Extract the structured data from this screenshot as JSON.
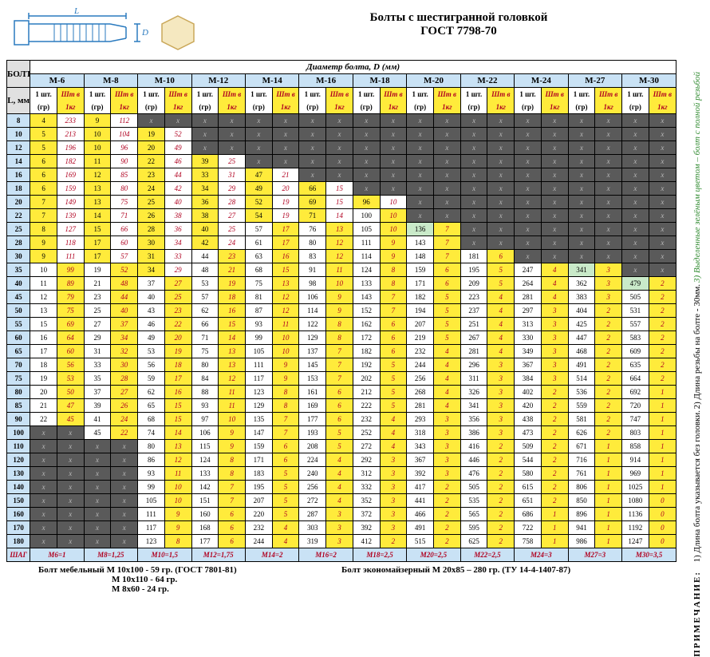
{
  "title1": "Болты с шестигранной головкой",
  "title2": "ГОСТ 7798-70",
  "header_bolt": "БОЛТ",
  "header_diam": "Диаметр болта, D (мм)",
  "header_L": "L, мм",
  "header_g": "1 шт. (гр)",
  "header_k": "Шт в 1кг",
  "diameters": [
    "M-6",
    "M-8",
    "M-10",
    "M-12",
    "M-14",
    "M-16",
    "M-18",
    "M-20",
    "M-22",
    "M-24",
    "M-27",
    "M-30"
  ],
  "lengths": [
    8,
    10,
    12,
    14,
    16,
    18,
    20,
    22,
    25,
    28,
    30,
    35,
    40,
    45,
    50,
    55,
    60,
    65,
    70,
    75,
    80,
    85,
    90,
    100,
    110,
    120,
    130,
    140,
    150,
    160,
    170,
    180
  ],
  "thread_label": "ШАГ",
  "thread": [
    "M6=1",
    "M8=1,25",
    "M10=1,5",
    "M12=1,75",
    "M14=2",
    "M16=2",
    "M18=2,5",
    "M20=2,5",
    "M22=2,5",
    "M24=3",
    "M27=3",
    "M30=3,5"
  ],
  "yellow_stop_g": [
    11,
    11,
    12,
    10,
    8,
    8,
    7,
    5,
    3,
    3,
    1,
    1
  ],
  "green_ranges": [
    [],
    [],
    [],
    [],
    [],
    [
      8,
      8
    ],
    [
      7,
      8
    ],
    [
      8,
      8
    ],
    [
      8,
      9
    ],
    [
      9,
      10
    ],
    [
      10,
      11
    ],
    [
      11,
      11
    ],
    [
      12,
      13
    ],
    [
      13,
      14
    ],
    [
      14,
      15
    ],
    [
      15,
      16
    ],
    [
      16,
      17
    ],
    [
      17,
      18
    ],
    [
      18,
      19
    ],
    [
      19,
      20
    ],
    [
      20,
      21
    ],
    [
      21,
      22
    ],
    [
      22,
      23
    ],
    [
      23,
      23
    ],
    [],
    [],
    [],
    [],
    [],
    [],
    [],
    []
  ],
  "side_caption": "ПРИМЕЧАНИЕ:",
  "side_notes": [
    "1) Длина болта указывается без головки.",
    "2) Длина резьбы на болте - 30мм.",
    "3) Выделенные зелёным цветом – болт с полной резьбой"
  ],
  "footer_left": [
    "Болт мебельный M 10x100 - 59 гр. (ГОСТ 7801-81)",
    "M 10x110 - 64 гр.",
    "M  8x60 - 24 гр."
  ],
  "footer_right": "Болт экономайзерный M 20x85 – 280 гр. (ТУ 14-4-1407-87)",
  "data": [
    [
      [
        4,
        233
      ],
      [
        9,
        112
      ],
      null,
      null,
      null,
      null,
      null,
      null,
      null,
      null,
      null,
      null
    ],
    [
      [
        5,
        213
      ],
      [
        10,
        104
      ],
      [
        19,
        52
      ],
      null,
      null,
      null,
      null,
      null,
      null,
      null,
      null,
      null
    ],
    [
      [
        5,
        196
      ],
      [
        10,
        96
      ],
      [
        20,
        49
      ],
      null,
      null,
      null,
      null,
      null,
      null,
      null,
      null,
      null
    ],
    [
      [
        6,
        182
      ],
      [
        11,
        90
      ],
      [
        22,
        46
      ],
      [
        39,
        25
      ],
      null,
      null,
      null,
      null,
      null,
      null,
      null,
      null
    ],
    [
      [
        6,
        169
      ],
      [
        12,
        85
      ],
      [
        23,
        44
      ],
      [
        33,
        31
      ],
      [
        47,
        21
      ],
      null,
      null,
      null,
      null,
      null,
      null,
      null
    ],
    [
      [
        6,
        159
      ],
      [
        13,
        80
      ],
      [
        24,
        42
      ],
      [
        34,
        29
      ],
      [
        49,
        20
      ],
      [
        66,
        15
      ],
      null,
      null,
      null,
      null,
      null,
      null
    ],
    [
      [
        7,
        149
      ],
      [
        13,
        75
      ],
      [
        25,
        40
      ],
      [
        36,
        28
      ],
      [
        52,
        19
      ],
      [
        69,
        15
      ],
      [
        96,
        10
      ],
      null,
      null,
      null,
      null,
      null
    ],
    [
      [
        7,
        139
      ],
      [
        14,
        71
      ],
      [
        26,
        38
      ],
      [
        38,
        27
      ],
      [
        54,
        19
      ],
      [
        71,
        14
      ],
      [
        100,
        10
      ],
      null,
      null,
      null,
      null,
      null
    ],
    [
      [
        8,
        127
      ],
      [
        15,
        66
      ],
      [
        28,
        36
      ],
      [
        40,
        25
      ],
      [
        57,
        17
      ],
      [
        76,
        13
      ],
      [
        105,
        10
      ],
      [
        136,
        7
      ],
      null,
      null,
      null,
      null
    ],
    [
      [
        9,
        118
      ],
      [
        17,
        60
      ],
      [
        30,
        34
      ],
      [
        42,
        24
      ],
      [
        61,
        17
      ],
      [
        80,
        12
      ],
      [
        111,
        9
      ],
      [
        143,
        7
      ],
      null,
      null,
      null,
      null
    ],
    [
      [
        9,
        111
      ],
      [
        17,
        57
      ],
      [
        31,
        33
      ],
      [
        44,
        23
      ],
      [
        63,
        16
      ],
      [
        83,
        12
      ],
      [
        114,
        9
      ],
      [
        148,
        7
      ],
      [
        181,
        6
      ],
      null,
      null,
      null
    ],
    [
      [
        10,
        99
      ],
      [
        19,
        52
      ],
      [
        34,
        29
      ],
      [
        48,
        21
      ],
      [
        68,
        15
      ],
      [
        91,
        11
      ],
      [
        124,
        8
      ],
      [
        159,
        6
      ],
      [
        195,
        5
      ],
      [
        247,
        4
      ],
      [
        341,
        3
      ],
      null
    ],
    [
      [
        11,
        89
      ],
      [
        21,
        48
      ],
      [
        37,
        27
      ],
      [
        53,
        19
      ],
      [
        75,
        13
      ],
      [
        98,
        10
      ],
      [
        133,
        8
      ],
      [
        171,
        6
      ],
      [
        209,
        5
      ],
      [
        264,
        4
      ],
      [
        362,
        3
      ],
      [
        479,
        2
      ]
    ],
    [
      [
        12,
        79
      ],
      [
        23,
        44
      ],
      [
        40,
        25
      ],
      [
        57,
        18
      ],
      [
        81,
        12
      ],
      [
        106,
        9
      ],
      [
        143,
        7
      ],
      [
        182,
        5
      ],
      [
        223,
        4
      ],
      [
        281,
        4
      ],
      [
        383,
        3
      ],
      [
        505,
        2
      ]
    ],
    [
      [
        13,
        75
      ],
      [
        25,
        40
      ],
      [
        43,
        23
      ],
      [
        62,
        16
      ],
      [
        87,
        12
      ],
      [
        114,
        9
      ],
      [
        152,
        7
      ],
      [
        194,
        5
      ],
      [
        237,
        4
      ],
      [
        297,
        3
      ],
      [
        404,
        2
      ],
      [
        531,
        2
      ]
    ],
    [
      [
        15,
        69
      ],
      [
        27,
        37
      ],
      [
        46,
        22
      ],
      [
        66,
        15
      ],
      [
        93,
        11
      ],
      [
        122,
        8
      ],
      [
        162,
        6
      ],
      [
        207,
        5
      ],
      [
        251,
        4
      ],
      [
        313,
        3
      ],
      [
        425,
        2
      ],
      [
        557,
        2
      ]
    ],
    [
      [
        16,
        64
      ],
      [
        29,
        34
      ],
      [
        49,
        20
      ],
      [
        71,
        14
      ],
      [
        99,
        10
      ],
      [
        129,
        8
      ],
      [
        172,
        6
      ],
      [
        219,
        5
      ],
      [
        267,
        4
      ],
      [
        330,
        3
      ],
      [
        447,
        2
      ],
      [
        583,
        2
      ]
    ],
    [
      [
        17,
        60
      ],
      [
        31,
        32
      ],
      [
        53,
        19
      ],
      [
        75,
        13
      ],
      [
        105,
        10
      ],
      [
        137,
        7
      ],
      [
        182,
        6
      ],
      [
        232,
        4
      ],
      [
        281,
        4
      ],
      [
        349,
        3
      ],
      [
        468,
        2
      ],
      [
        609,
        2
      ]
    ],
    [
      [
        18,
        56
      ],
      [
        33,
        30
      ],
      [
        56,
        18
      ],
      [
        80,
        13
      ],
      [
        111,
        9
      ],
      [
        145,
        7
      ],
      [
        192,
        5
      ],
      [
        244,
        4
      ],
      [
        296,
        3
      ],
      [
        367,
        3
      ],
      [
        491,
        2
      ],
      [
        635,
        2
      ]
    ],
    [
      [
        19,
        53
      ],
      [
        35,
        28
      ],
      [
        59,
        17
      ],
      [
        84,
        12
      ],
      [
        117,
        9
      ],
      [
        153,
        7
      ],
      [
        202,
        5
      ],
      [
        256,
        4
      ],
      [
        311,
        3
      ],
      [
        384,
        3
      ],
      [
        514,
        2
      ],
      [
        664,
        2
      ]
    ],
    [
      [
        20,
        50
      ],
      [
        37,
        27
      ],
      [
        62,
        16
      ],
      [
        88,
        11
      ],
      [
        123,
        8
      ],
      [
        161,
        6
      ],
      [
        212,
        5
      ],
      [
        268,
        4
      ],
      [
        326,
        3
      ],
      [
        402,
        2
      ],
      [
        536,
        2
      ],
      [
        692,
        1
      ]
    ],
    [
      [
        21,
        47
      ],
      [
        39,
        26
      ],
      [
        65,
        15
      ],
      [
        93,
        11
      ],
      [
        129,
        8
      ],
      [
        169,
        6
      ],
      [
        222,
        5
      ],
      [
        281,
        4
      ],
      [
        341,
        3
      ],
      [
        420,
        2
      ],
      [
        559,
        2
      ],
      [
        720,
        1
      ]
    ],
    [
      [
        22,
        45
      ],
      [
        41,
        24
      ],
      [
        68,
        15
      ],
      [
        97,
        10
      ],
      [
        135,
        7
      ],
      [
        177,
        6
      ],
      [
        232,
        4
      ],
      [
        293,
        3
      ],
      [
        356,
        3
      ],
      [
        438,
        2
      ],
      [
        581,
        2
      ],
      [
        747,
        1
      ]
    ],
    [
      null,
      [
        45,
        22
      ],
      [
        74,
        14
      ],
      [
        106,
        9
      ],
      [
        147,
        7
      ],
      [
        193,
        5
      ],
      [
        252,
        4
      ],
      [
        318,
        3
      ],
      [
        386,
        3
      ],
      [
        473,
        2
      ],
      [
        626,
        2
      ],
      [
        803,
        1
      ]
    ],
    [
      null,
      null,
      [
        80,
        13
      ],
      [
        115,
        9
      ],
      [
        159,
        6
      ],
      [
        208,
        5
      ],
      [
        272,
        4
      ],
      [
        343,
        3
      ],
      [
        416,
        2
      ],
      [
        509,
        2
      ],
      [
        671,
        1
      ],
      [
        858,
        1
      ]
    ],
    [
      null,
      null,
      [
        86,
        12
      ],
      [
        124,
        8
      ],
      [
        171,
        6
      ],
      [
        224,
        4
      ],
      [
        292,
        3
      ],
      [
        367,
        3
      ],
      [
        446,
        2
      ],
      [
        544,
        2
      ],
      [
        716,
        1
      ],
      [
        914,
        1
      ]
    ],
    [
      null,
      null,
      [
        93,
        11
      ],
      [
        133,
        8
      ],
      [
        183,
        5
      ],
      [
        240,
        4
      ],
      [
        312,
        3
      ],
      [
        392,
        3
      ],
      [
        476,
        2
      ],
      [
        580,
        2
      ],
      [
        761,
        1
      ],
      [
        969,
        1
      ]
    ],
    [
      null,
      null,
      [
        99,
        10
      ],
      [
        142,
        7
      ],
      [
        195,
        5
      ],
      [
        256,
        4
      ],
      [
        332,
        3
      ],
      [
        417,
        2
      ],
      [
        505,
        2
      ],
      [
        615,
        2
      ],
      [
        806,
        1
      ],
      [
        1025,
        1
      ]
    ],
    [
      null,
      null,
      [
        105,
        10
      ],
      [
        151,
        7
      ],
      [
        207,
        5
      ],
      [
        272,
        4
      ],
      [
        352,
        3
      ],
      [
        441,
        2
      ],
      [
        535,
        2
      ],
      [
        651,
        2
      ],
      [
        850,
        1
      ],
      [
        1080,
        0
      ]
    ],
    [
      null,
      null,
      [
        111,
        9
      ],
      [
        160,
        6
      ],
      [
        220,
        5
      ],
      [
        287,
        3
      ],
      [
        372,
        3
      ],
      [
        466,
        2
      ],
      [
        565,
        2
      ],
      [
        686,
        1
      ],
      [
        896,
        1
      ],
      [
        1136,
        0
      ]
    ],
    [
      null,
      null,
      [
        117,
        9
      ],
      [
        168,
        6
      ],
      [
        232,
        4
      ],
      [
        303,
        3
      ],
      [
        392,
        3
      ],
      [
        491,
        2
      ],
      [
        595,
        2
      ],
      [
        722,
        1
      ],
      [
        941,
        1
      ],
      [
        1192,
        0
      ]
    ],
    [
      null,
      null,
      [
        123,
        8
      ],
      [
        177,
        6
      ],
      [
        244,
        4
      ],
      [
        319,
        3
      ],
      [
        412,
        2
      ],
      [
        515,
        2
      ],
      [
        625,
        2
      ],
      [
        758,
        1
      ],
      [
        986,
        1
      ],
      [
        1247,
        0
      ]
    ]
  ]
}
